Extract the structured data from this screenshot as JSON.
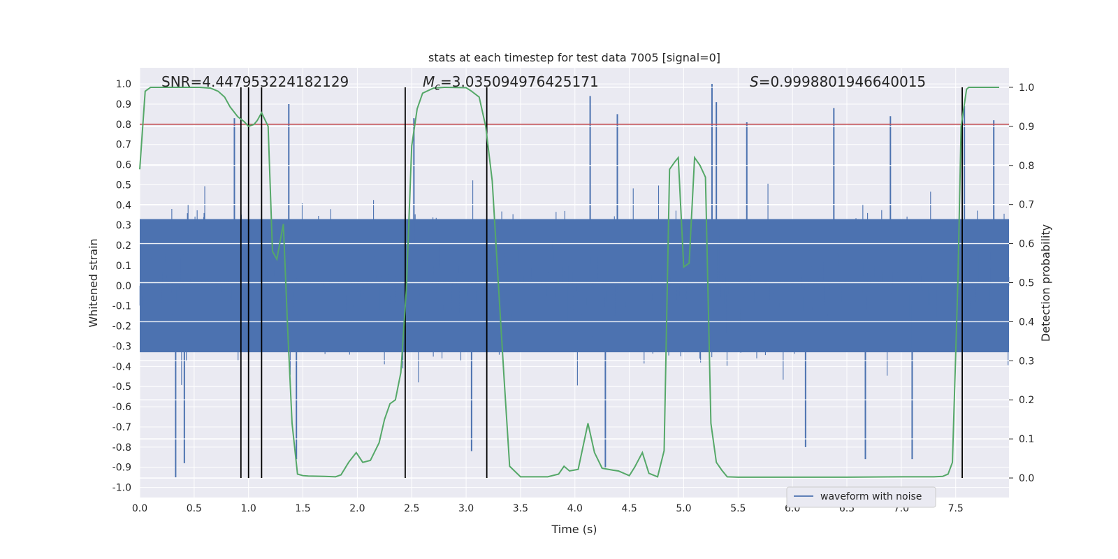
{
  "chart_data": {
    "type": "line",
    "title": "stats at each timestep for test data 7005 [signal=0]",
    "xlabel": "Time (s)",
    "ylabel_left": "Whitened strain",
    "ylabel_right": "Detection probability",
    "xlim": [
      0.0,
      7.99
    ],
    "ylim_left": [
      -1.05,
      1.08
    ],
    "ylim_right": [
      -0.05,
      1.05
    ],
    "x_ticks": [
      "0.0",
      "0.5",
      "1.0",
      "1.5",
      "2.0",
      "2.5",
      "3.0",
      "3.5",
      "4.0",
      "4.5",
      "5.0",
      "5.5",
      "6.0",
      "6.5",
      "7.0",
      "7.5"
    ],
    "y_left_ticks": [
      "1.0",
      "0.9",
      "0.8",
      "0.7",
      "0.6",
      "0.5",
      "0.4",
      "0.3",
      "0.2",
      "0.1",
      "0.0",
      "-0.1",
      "-0.2",
      "-0.3",
      "-0.4",
      "-0.5",
      "-0.6",
      "-0.7",
      "-0.8",
      "-0.9",
      "-1.0"
    ],
    "y_right_ticks": [
      "1.0",
      "0.9",
      "0.8",
      "0.7",
      "0.6",
      "0.5",
      "0.4",
      "0.3",
      "0.2",
      "0.1",
      "0.0"
    ],
    "annotations": {
      "snr": "SNR=4.447953224182129",
      "mc_symbol": "M",
      "mc_sub": "c",
      "mc_value": "=3.035094976425171",
      "s_symbol": "S",
      "s_value": "=0.9998801946640015"
    },
    "threshold": {
      "value": 0.8,
      "axis": "left",
      "color": "#c44e52"
    },
    "vertical_lines": [
      0.93,
      1.0,
      1.12,
      2.44,
      3.19,
      7.56
    ],
    "legend": {
      "label": "waveform with noise",
      "position": "lower-right"
    },
    "series": [
      {
        "name": "waveform with noise",
        "axis": "left",
        "color": "#4c72b0",
        "envelope": {
          "core_abs": 0.33,
          "typical_abs": 0.55,
          "noise": "white"
        },
        "peaks": [
          {
            "x": 0.33,
            "y": -0.95
          },
          {
            "x": 0.41,
            "y": -0.88
          },
          {
            "x": 0.87,
            "y": 0.83
          },
          {
            "x": 1.37,
            "y": 0.9
          },
          {
            "x": 1.44,
            "y": -0.86
          },
          {
            "x": 2.52,
            "y": 0.83
          },
          {
            "x": 3.05,
            "y": -0.82
          },
          {
            "x": 4.14,
            "y": 0.94
          },
          {
            "x": 4.39,
            "y": 0.85
          },
          {
            "x": 4.28,
            "y": -0.9
          },
          {
            "x": 5.26,
            "y": 1.0
          },
          {
            "x": 5.3,
            "y": 0.91
          },
          {
            "x": 5.58,
            "y": 0.81
          },
          {
            "x": 6.12,
            "y": -0.8
          },
          {
            "x": 6.38,
            "y": 0.88
          },
          {
            "x": 6.67,
            "y": -0.86
          },
          {
            "x": 6.9,
            "y": 0.84
          },
          {
            "x": 7.1,
            "y": -0.86
          },
          {
            "x": 7.58,
            "y": 0.89
          },
          {
            "x": 7.85,
            "y": 0.82
          }
        ]
      },
      {
        "name": "detection probability",
        "axis": "right",
        "color": "#55a868",
        "x": [
          0.0,
          0.05,
          0.1,
          0.2,
          0.4,
          0.55,
          0.65,
          0.72,
          0.78,
          0.83,
          0.9,
          0.96,
          1.0,
          1.05,
          1.08,
          1.12,
          1.18,
          1.22,
          1.26,
          1.32,
          1.36,
          1.4,
          1.45,
          1.5,
          1.55,
          1.7,
          1.8,
          1.85,
          1.92,
          1.99,
          2.05,
          2.12,
          2.2,
          2.25,
          2.3,
          2.35,
          2.4,
          2.45,
          2.5,
          2.55,
          2.6,
          2.7,
          2.8,
          3.0,
          3.05,
          3.12,
          3.18,
          3.24,
          3.3,
          3.35,
          3.4,
          3.5,
          3.7,
          3.75,
          3.85,
          3.9,
          3.95,
          4.03,
          4.12,
          4.18,
          4.25,
          4.35,
          4.4,
          4.5,
          4.55,
          4.62,
          4.68,
          4.76,
          4.82,
          4.87,
          4.92,
          4.95,
          5.0,
          5.05,
          5.1,
          5.15,
          5.2,
          5.25,
          5.3,
          5.35,
          5.4,
          5.5,
          6.0,
          6.5,
          7.0,
          7.3,
          7.38,
          7.43,
          7.47,
          7.52,
          7.55,
          7.6,
          7.62,
          7.68,
          7.77,
          7.9
        ],
        "y": [
          0.79,
          0.99,
          1.0,
          1.0,
          1.0,
          1.0,
          0.998,
          0.99,
          0.975,
          0.95,
          0.925,
          0.912,
          0.9,
          0.905,
          0.915,
          0.935,
          0.9,
          0.58,
          0.56,
          0.65,
          0.38,
          0.14,
          0.01,
          0.006,
          0.005,
          0.004,
          0.003,
          0.008,
          0.04,
          0.065,
          0.04,
          0.045,
          0.09,
          0.15,
          0.19,
          0.2,
          0.27,
          0.48,
          0.85,
          0.945,
          0.985,
          0.998,
          1.0,
          0.999,
          0.99,
          0.975,
          0.9,
          0.76,
          0.48,
          0.25,
          0.03,
          0.003,
          0.003,
          0.003,
          0.01,
          0.03,
          0.018,
          0.022,
          0.14,
          0.065,
          0.025,
          0.02,
          0.018,
          0.006,
          0.028,
          0.065,
          0.012,
          0.003,
          0.07,
          0.79,
          0.81,
          0.82,
          0.54,
          0.55,
          0.82,
          0.8,
          0.77,
          0.14,
          0.04,
          0.02,
          0.003,
          0.002,
          0.002,
          0.002,
          0.003,
          0.003,
          0.004,
          0.01,
          0.04,
          0.5,
          0.9,
          0.995,
          1.0,
          1.0,
          1.0,
          1.0
        ]
      }
    ]
  }
}
